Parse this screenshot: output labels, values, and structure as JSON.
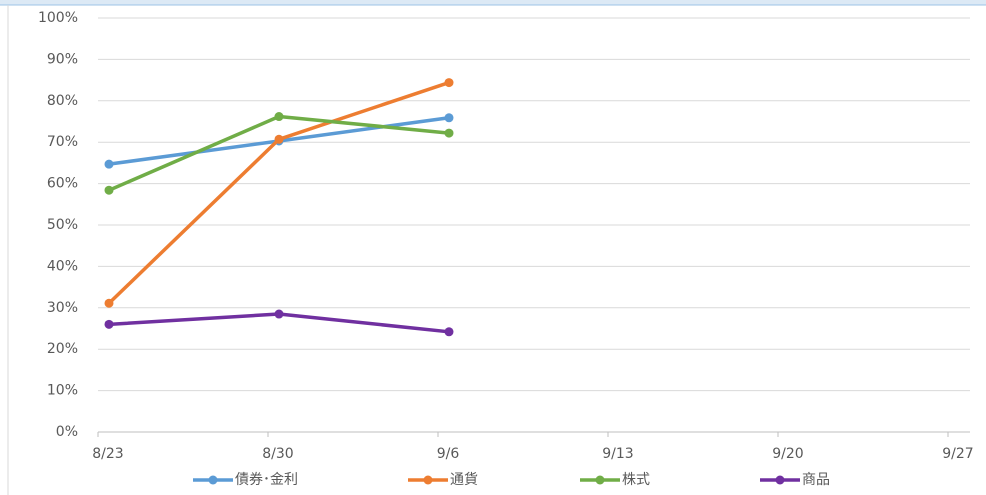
{
  "chart_data": {
    "type": "line",
    "categories": [
      "8/23",
      "8/30",
      "9/6",
      "9/13",
      "9/20",
      "9/27"
    ],
    "series": [
      {
        "name": "債券･金利",
        "color": "#5b9bd5",
        "values": [
          64.7,
          70.3,
          75.9,
          null,
          null,
          null
        ]
      },
      {
        "name": "通貨",
        "color": "#ed7d31",
        "values": [
          31.1,
          70.7,
          84.4,
          null,
          null,
          null
        ]
      },
      {
        "name": "株式",
        "color": "#70ad47",
        "values": [
          58.4,
          76.2,
          72.2,
          null,
          null,
          null
        ]
      },
      {
        "name": "商品",
        "color": "#7030a0",
        "values": [
          26.0,
          28.5,
          24.2,
          null,
          null,
          null
        ]
      }
    ],
    "ylim": [
      0,
      100
    ],
    "yticks": [
      {
        "value": 0,
        "label": "0%"
      },
      {
        "value": 10,
        "label": "10%"
      },
      {
        "value": 20,
        "label": "20%"
      },
      {
        "value": 30,
        "label": "30%"
      },
      {
        "value": 40,
        "label": "40%"
      },
      {
        "value": 50,
        "label": "50%"
      },
      {
        "value": 60,
        "label": "60%"
      },
      {
        "value": 70,
        "label": "70%"
      },
      {
        "value": 80,
        "label": "80%"
      },
      {
        "value": 90,
        "label": "90%"
      },
      {
        "value": 100,
        "label": "100%"
      }
    ],
    "grid": true,
    "legend": "bottom"
  }
}
